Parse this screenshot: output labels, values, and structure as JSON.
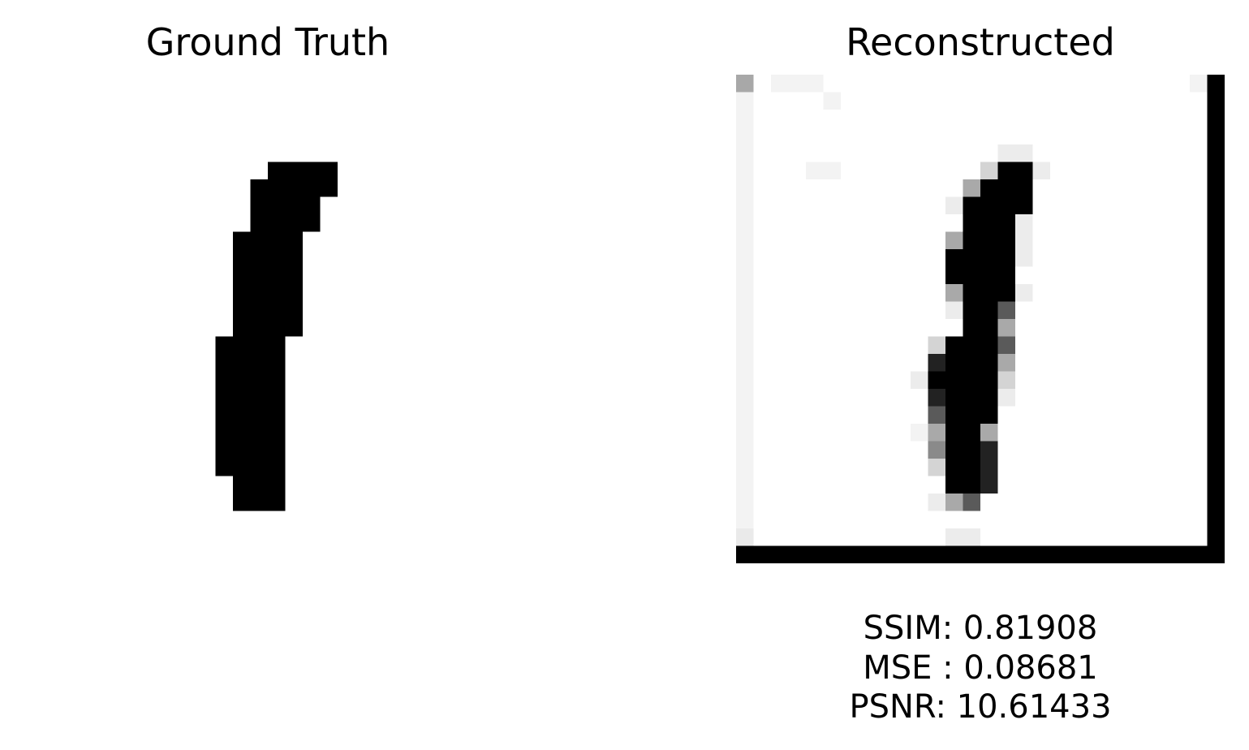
{
  "panels": {
    "ground_truth": {
      "title": "Ground Truth"
    },
    "reconstructed": {
      "title": "Reconstructed"
    }
  },
  "metrics": {
    "ssim": "SSIM: 0.81908",
    "mse": "MSE : 0.08681",
    "psnr": "PSNR: 10.61433"
  },
  "colors": {
    "background": "#ffffff",
    "ink": "#000000"
  }
}
